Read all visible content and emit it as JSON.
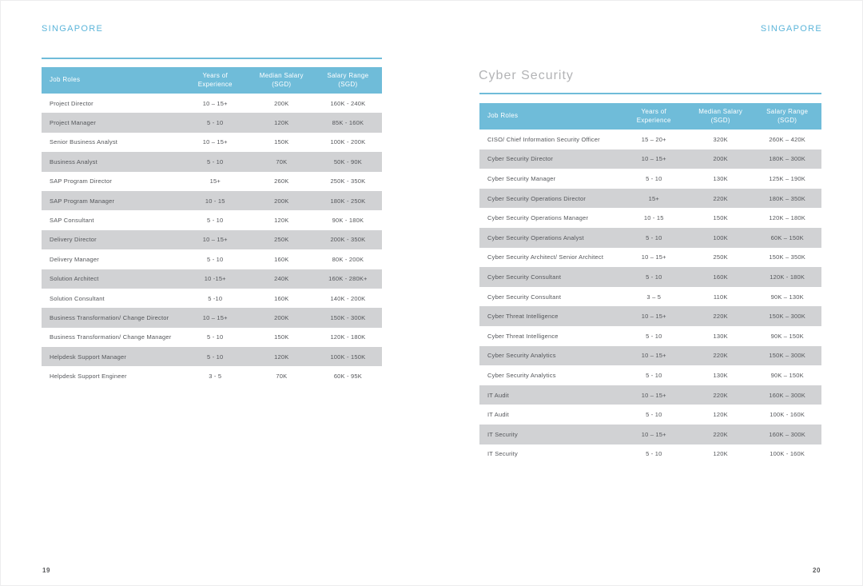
{
  "colors": {
    "accent_blue": "#6fbcd9",
    "region_label_blue": "#5cb5da",
    "row_gray": "#d1d2d4",
    "header_text": "#ffffff",
    "body_text": "#54565a",
    "section_title_gray": "#b3b4b6"
  },
  "left_page": {
    "region_label": "SINGAPORE",
    "page_number": "19",
    "table": {
      "headers": [
        {
          "l1": "Job Roles",
          "l2": ""
        },
        {
          "l1": "Years of",
          "l2": "Experience"
        },
        {
          "l1": "Median Salary",
          "l2": "(SGD)"
        },
        {
          "l1": "Salary Range",
          "l2": "(SGD)"
        }
      ],
      "rows": [
        [
          "Project Director",
          "10 – 15+",
          "200K",
          "160K - 240K"
        ],
        [
          "Project Manager",
          "5 - 10",
          "120K",
          "85K - 160K"
        ],
        [
          "Senior Business Analyst",
          "10 – 15+",
          "150K",
          "100K - 200K"
        ],
        [
          "Business Analyst",
          "5 - 10",
          "70K",
          "50K - 90K"
        ],
        [
          "SAP Program Director",
          "15+",
          "260K",
          "250K - 350K"
        ],
        [
          "SAP Program Manager",
          "10 - 15",
          "200K",
          "180K - 250K"
        ],
        [
          "SAP Consultant",
          "5 - 10",
          "120K",
          "90K - 180K"
        ],
        [
          "Delivery Director",
          "10 – 15+",
          "250K",
          "200K - 350K"
        ],
        [
          "Delivery Manager",
          "5 - 10",
          "160K",
          "80K - 200K"
        ],
        [
          "Solution Architect",
          "10 -15+",
          "240K",
          "160K - 280K+"
        ],
        [
          "Solution Consultant",
          "5 -10",
          "160K",
          "140K - 200K"
        ],
        [
          "Business Transformation/ Change Director",
          "10 – 15+",
          "200K",
          "150K - 300K"
        ],
        [
          "Business Transformation/ Change Manager",
          "5 - 10",
          "150K",
          "120K - 180K"
        ],
        [
          "Helpdesk Support Manager",
          "5 - 10",
          "120K",
          "100K - 150K"
        ],
        [
          "Helpdesk Support Engineer",
          "3 - 5",
          "70K",
          "60K - 95K"
        ]
      ]
    }
  },
  "right_page": {
    "region_label": "SINGAPORE",
    "section_title": "Cyber Security",
    "page_number": "20",
    "table": {
      "headers": [
        {
          "l1": "Job Roles",
          "l2": ""
        },
        {
          "l1": "Years of",
          "l2": "Experience"
        },
        {
          "l1": "Median Salary",
          "l2": "(SGD)"
        },
        {
          "l1": "Salary Range",
          "l2": "(SGD)"
        }
      ],
      "rows": [
        [
          "CISO/ Chief Information Security Officer",
          "15 – 20+",
          "320K",
          "260K – 420K"
        ],
        [
          "Cyber Security Director",
          "10 – 15+",
          "200K",
          "180K – 300K"
        ],
        [
          "Cyber Security Manager",
          "5 - 10",
          "130K",
          "125K – 190K"
        ],
        [
          "Cyber Security Operations Director",
          "15+",
          "220K",
          "180K – 350K"
        ],
        [
          "Cyber Security Operations Manager",
          "10 - 15",
          "150K",
          "120K – 180K"
        ],
        [
          "Cyber Security Operations Analyst",
          "5 - 10",
          "100K",
          "60K – 150K"
        ],
        [
          "Cyber Security Architect/ Senior Architect",
          "10 – 15+",
          "250K",
          "150K – 350K"
        ],
        [
          "Cyber Security Consultant",
          "5 - 10",
          "160K",
          "120K - 180K"
        ],
        [
          "Cyber Security Consultant",
          "3 – 5",
          "110K",
          "90K – 130K"
        ],
        [
          "Cyber Threat Intelligence",
          "10 – 15+",
          "220K",
          "150K – 300K"
        ],
        [
          "Cyber Threat Intelligence",
          "5 - 10",
          "130K",
          "90K – 150K"
        ],
        [
          "Cyber Security Analytics",
          "10 – 15+",
          "220K",
          "150K – 300K"
        ],
        [
          "Cyber Security Analytics",
          "5 - 10",
          "130K",
          "90K – 150K"
        ],
        [
          "IT Audit",
          "10 – 15+",
          "220K",
          "160K – 300K"
        ],
        [
          "IT Audit",
          "5 - 10",
          "120K",
          "100K - 160K"
        ],
        [
          "IT Security",
          "10 – 15+",
          "220K",
          "160K – 300K"
        ],
        [
          "IT Security",
          "5 - 10",
          "120K",
          "100K - 160K"
        ]
      ]
    }
  }
}
